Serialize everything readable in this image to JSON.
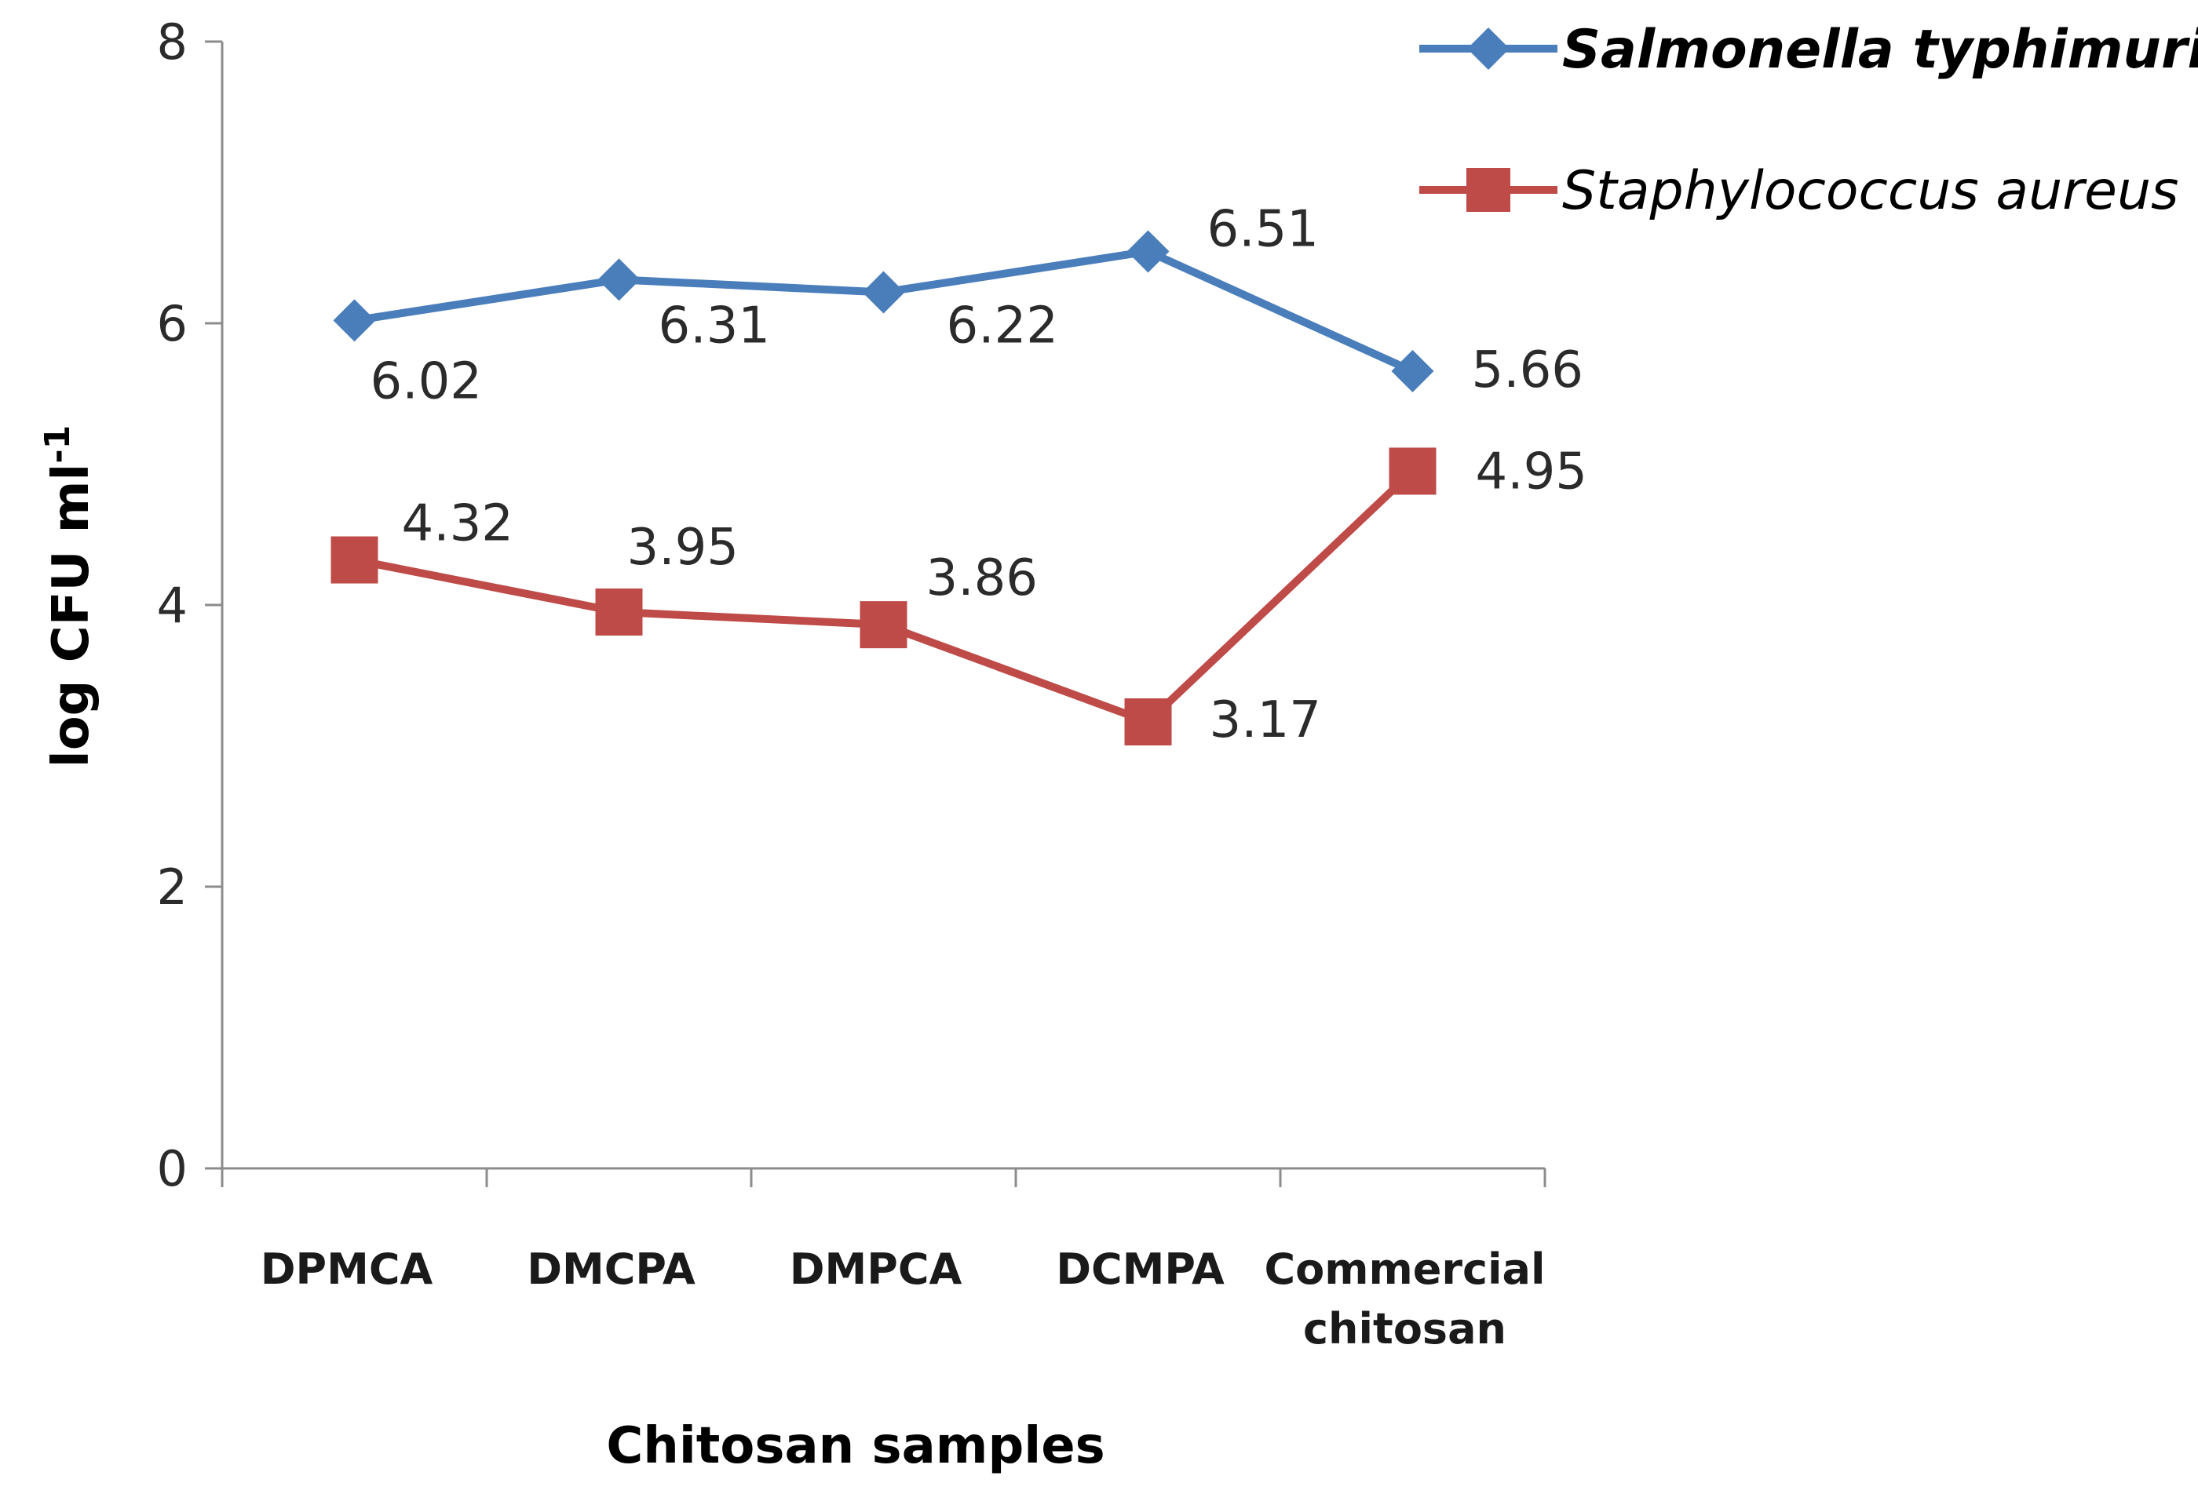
{
  "chart_data": {
    "type": "line",
    "title": "",
    "xlabel": "Chitosan samples",
    "ylabel": "log CFU ml",
    "ylabel_superscript": "-1",
    "ylim": [
      0,
      8
    ],
    "yticks": [
      0,
      2,
      4,
      6,
      8
    ],
    "grid": false,
    "legend_position": "top-right",
    "categories": [
      [
        "DPMCA"
      ],
      [
        "DMCPA"
      ],
      [
        "DMPCA"
      ],
      [
        "DCMPA"
      ],
      [
        "Commercial",
        "chitosan"
      ]
    ],
    "series": [
      {
        "name": "Salmonella typhimurium",
        "color": "#4a7ebb",
        "marker": "diamond",
        "bold_legend": true,
        "values": [
          6.02,
          6.31,
          6.22,
          6.51,
          5.66
        ],
        "labels": [
          "6.02",
          "6.31",
          "6.22",
          "6.51",
          "5.66"
        ]
      },
      {
        "name": "Staphylococcus aureus",
        "color": "#be4b48",
        "marker": "square",
        "bold_legend": false,
        "values": [
          4.32,
          3.95,
          3.86,
          3.17,
          4.95
        ],
        "labels": [
          "4.32",
          "3.95",
          "3.86",
          "3.17",
          "4.95"
        ]
      }
    ]
  }
}
